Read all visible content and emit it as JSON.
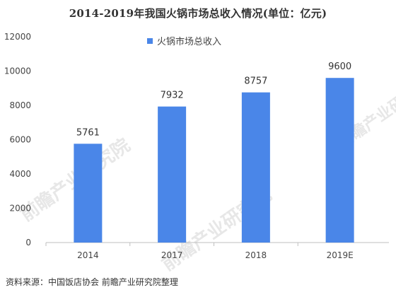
{
  "chart_data": {
    "type": "bar",
    "title": "2014-2019年我国火锅市场总收入情况(单位：亿元)",
    "categories": [
      "2014",
      "2017",
      "2018",
      "2019E"
    ],
    "series": [
      {
        "name": "火锅市场总收入",
        "values": [
          5761,
          7932,
          8757,
          9600
        ]
      }
    ],
    "data_labels": [
      "5761",
      "7932",
      "8757",
      "9600"
    ],
    "ylim": [
      0,
      12000
    ],
    "yticks": [
      "0",
      "2000",
      "4000",
      "6000",
      "8000",
      "10000",
      "12000"
    ],
    "xlabel": "",
    "ylabel": "",
    "legend_position": "top-center",
    "grid": false,
    "bar_color": "#4A86E8"
  },
  "source_text": "资料来源：中国饭店协会 前瞻产业研究院整理",
  "watermark_text": "前瞻产业研究院"
}
